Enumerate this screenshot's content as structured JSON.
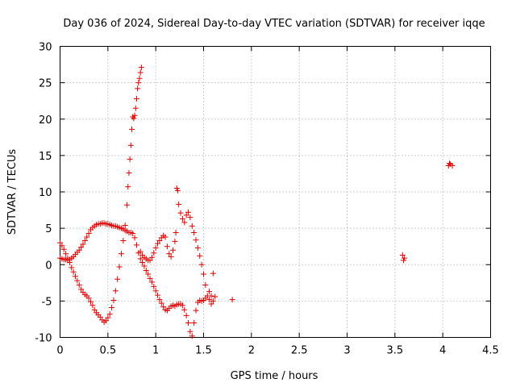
{
  "chart_data": {
    "type": "scatter",
    "title": "Day 036 of 2024, Sidereal Day-to-day VTEC variation (SDTVAR) for receiver iqqe",
    "xlabel": "GPS time / hours",
    "ylabel": "SDTVAR / TECUs",
    "xlim": [
      0,
      4.5
    ],
    "ylim": [
      -10,
      30
    ],
    "x_ticks": [
      0,
      0.5,
      1,
      1.5,
      2,
      2.5,
      3,
      3.5,
      4,
      4.5
    ],
    "x_tick_labels": [
      "0",
      "0.5",
      "1",
      "1.5",
      "2",
      "2.5",
      "3",
      "3.5",
      "4",
      "4.5"
    ],
    "y_ticks": [
      -10,
      -5,
      0,
      5,
      10,
      15,
      20,
      25,
      30
    ],
    "y_tick_labels": [
      "-10",
      "-5",
      "0",
      "5",
      "10",
      "15",
      "20",
      "25",
      "30"
    ],
    "grid": true,
    "marker": "+",
    "color": "#e00000",
    "series": [
      {
        "name": "SDTVAR",
        "points": [
          [
            0.0,
            3.0
          ],
          [
            0.02,
            2.6
          ],
          [
            0.04,
            2.1
          ],
          [
            0.06,
            1.5
          ],
          [
            0.08,
            0.9
          ],
          [
            0.1,
            0.3
          ],
          [
            0.12,
            -0.4
          ],
          [
            0.14,
            -1.0
          ],
          [
            0.16,
            -1.6
          ],
          [
            0.18,
            -2.2
          ],
          [
            0.2,
            -2.8
          ],
          [
            0.22,
            -3.4
          ],
          [
            0.24,
            -3.8
          ],
          [
            0.26,
            -4.1
          ],
          [
            0.28,
            -4.3
          ],
          [
            0.3,
            -4.6
          ],
          [
            0.32,
            -5.1
          ],
          [
            0.34,
            -5.6
          ],
          [
            0.36,
            -6.2
          ],
          [
            0.38,
            -6.6
          ],
          [
            0.4,
            -6.9
          ],
          [
            0.42,
            -7.2
          ],
          [
            0.44,
            -7.6
          ],
          [
            0.46,
            -7.9
          ],
          [
            0.48,
            -7.7
          ],
          [
            0.5,
            -7.3
          ],
          [
            0.52,
            -6.8
          ],
          [
            0.54,
            -5.9
          ],
          [
            0.56,
            -4.9
          ],
          [
            0.58,
            -3.6
          ],
          [
            0.6,
            -2.0
          ],
          [
            0.62,
            -0.3
          ],
          [
            0.64,
            1.5
          ],
          [
            0.66,
            3.3
          ],
          [
            0.68,
            5.4
          ],
          [
            0.7,
            8.2
          ],
          [
            0.71,
            10.7
          ],
          [
            0.72,
            12.6
          ],
          [
            0.73,
            14.5
          ],
          [
            0.74,
            16.4
          ],
          [
            0.75,
            18.6
          ],
          [
            0.76,
            20.3
          ],
          [
            0.77,
            20.1
          ],
          [
            0.78,
            20.5
          ],
          [
            0.79,
            21.5
          ],
          [
            0.8,
            22.8
          ],
          [
            0.81,
            24.2
          ],
          [
            0.82,
            25.0
          ],
          [
            0.83,
            25.6
          ],
          [
            0.84,
            26.4
          ],
          [
            0.85,
            27.1
          ],
          [
            0.0,
            0.9
          ],
          [
            0.02,
            0.8
          ],
          [
            0.04,
            0.7
          ],
          [
            0.06,
            0.7
          ],
          [
            0.08,
            0.6
          ],
          [
            0.1,
            0.7
          ],
          [
            0.12,
            0.9
          ],
          [
            0.14,
            1.1
          ],
          [
            0.16,
            1.4
          ],
          [
            0.18,
            1.7
          ],
          [
            0.2,
            2.0
          ],
          [
            0.22,
            2.4
          ],
          [
            0.24,
            2.8
          ],
          [
            0.26,
            3.3
          ],
          [
            0.28,
            3.8
          ],
          [
            0.3,
            4.3
          ],
          [
            0.32,
            4.8
          ],
          [
            0.34,
            5.1
          ],
          [
            0.36,
            5.3
          ],
          [
            0.38,
            5.5
          ],
          [
            0.4,
            5.6
          ],
          [
            0.42,
            5.6
          ],
          [
            0.44,
            5.7
          ],
          [
            0.46,
            5.7
          ],
          [
            0.48,
            5.6
          ],
          [
            0.5,
            5.6
          ],
          [
            0.52,
            5.5
          ],
          [
            0.54,
            5.4
          ],
          [
            0.56,
            5.3
          ],
          [
            0.58,
            5.3
          ],
          [
            0.6,
            5.2
          ],
          [
            0.62,
            5.1
          ],
          [
            0.64,
            5.0
          ],
          [
            0.66,
            4.9
          ],
          [
            0.68,
            4.7
          ],
          [
            0.7,
            4.6
          ],
          [
            0.72,
            4.4
          ],
          [
            0.74,
            4.4
          ],
          [
            0.76,
            4.3
          ],
          [
            0.78,
            3.7
          ],
          [
            0.8,
            2.7
          ],
          [
            0.82,
            1.6
          ],
          [
            0.84,
            0.8
          ],
          [
            0.86,
            0.3
          ],
          [
            0.88,
            -0.2
          ],
          [
            0.9,
            -0.8
          ],
          [
            0.92,
            -1.3
          ],
          [
            0.94,
            -1.9
          ],
          [
            0.96,
            -2.4
          ],
          [
            0.98,
            -3.0
          ],
          [
            1.0,
            -3.6
          ],
          [
            1.02,
            -4.2
          ],
          [
            1.04,
            -4.8
          ],
          [
            1.06,
            -5.3
          ],
          [
            1.08,
            -5.8
          ],
          [
            1.1,
            -6.2
          ],
          [
            1.12,
            -6.3
          ],
          [
            1.14,
            -6.0
          ],
          [
            1.16,
            -5.7
          ],
          [
            1.18,
            -5.6
          ],
          [
            1.2,
            -5.7
          ],
          [
            1.22,
            -5.5
          ],
          [
            1.24,
            -5.4
          ],
          [
            1.26,
            -5.4
          ],
          [
            1.28,
            -5.6
          ],
          [
            1.3,
            -6.2
          ],
          [
            1.32,
            -7.0
          ],
          [
            1.34,
            -8.0
          ],
          [
            1.36,
            -9.2
          ],
          [
            1.38,
            -9.8
          ],
          [
            1.4,
            -8.0
          ],
          [
            1.42,
            -6.3
          ],
          [
            1.44,
            -5.2
          ],
          [
            1.46,
            -4.9
          ],
          [
            1.48,
            -5.0
          ],
          [
            1.5,
            -4.9
          ],
          [
            1.52,
            -4.6
          ],
          [
            1.54,
            -4.3
          ],
          [
            1.56,
            -4.8
          ],
          [
            1.58,
            -5.4
          ],
          [
            1.6,
            -5.0
          ],
          [
            1.62,
            -4.4
          ],
          [
            1.8,
            -4.8
          ],
          [
            0.84,
            1.8
          ],
          [
            0.86,
            1.3
          ],
          [
            0.88,
            1.0
          ],
          [
            0.9,
            0.8
          ],
          [
            0.92,
            0.6
          ],
          [
            0.94,
            0.6
          ],
          [
            0.96,
            1.0
          ],
          [
            0.98,
            1.6
          ],
          [
            1.0,
            2.3
          ],
          [
            1.02,
            2.9
          ],
          [
            1.04,
            3.3
          ],
          [
            1.06,
            3.7
          ],
          [
            1.08,
            4.0
          ],
          [
            1.1,
            3.8
          ],
          [
            1.12,
            2.5
          ],
          [
            1.14,
            1.5
          ],
          [
            1.16,
            1.1
          ],
          [
            1.18,
            2.0
          ],
          [
            1.2,
            3.2
          ],
          [
            1.21,
            4.4
          ],
          [
            1.22,
            10.5
          ],
          [
            1.23,
            10.2
          ],
          [
            1.24,
            8.3
          ],
          [
            1.26,
            7.1
          ],
          [
            1.28,
            6.3
          ],
          [
            1.3,
            5.8
          ],
          [
            1.32,
            6.8
          ],
          [
            1.34,
            7.2
          ],
          [
            1.36,
            6.5
          ],
          [
            1.38,
            5.3
          ],
          [
            1.4,
            4.4
          ],
          [
            1.42,
            3.4
          ],
          [
            1.44,
            2.3
          ],
          [
            1.46,
            1.2
          ],
          [
            1.48,
            0.0
          ],
          [
            1.5,
            -1.3
          ],
          [
            1.52,
            -2.8
          ],
          [
            1.56,
            -3.7
          ],
          [
            1.6,
            -1.2
          ],
          [
            1.58,
            -4.3
          ],
          [
            3.58,
            1.3
          ],
          [
            3.59,
            0.6
          ],
          [
            3.6,
            0.9
          ],
          [
            4.06,
            13.6
          ],
          [
            4.07,
            13.9
          ],
          [
            4.08,
            13.8
          ],
          [
            4.1,
            13.6
          ]
        ]
      }
    ]
  }
}
